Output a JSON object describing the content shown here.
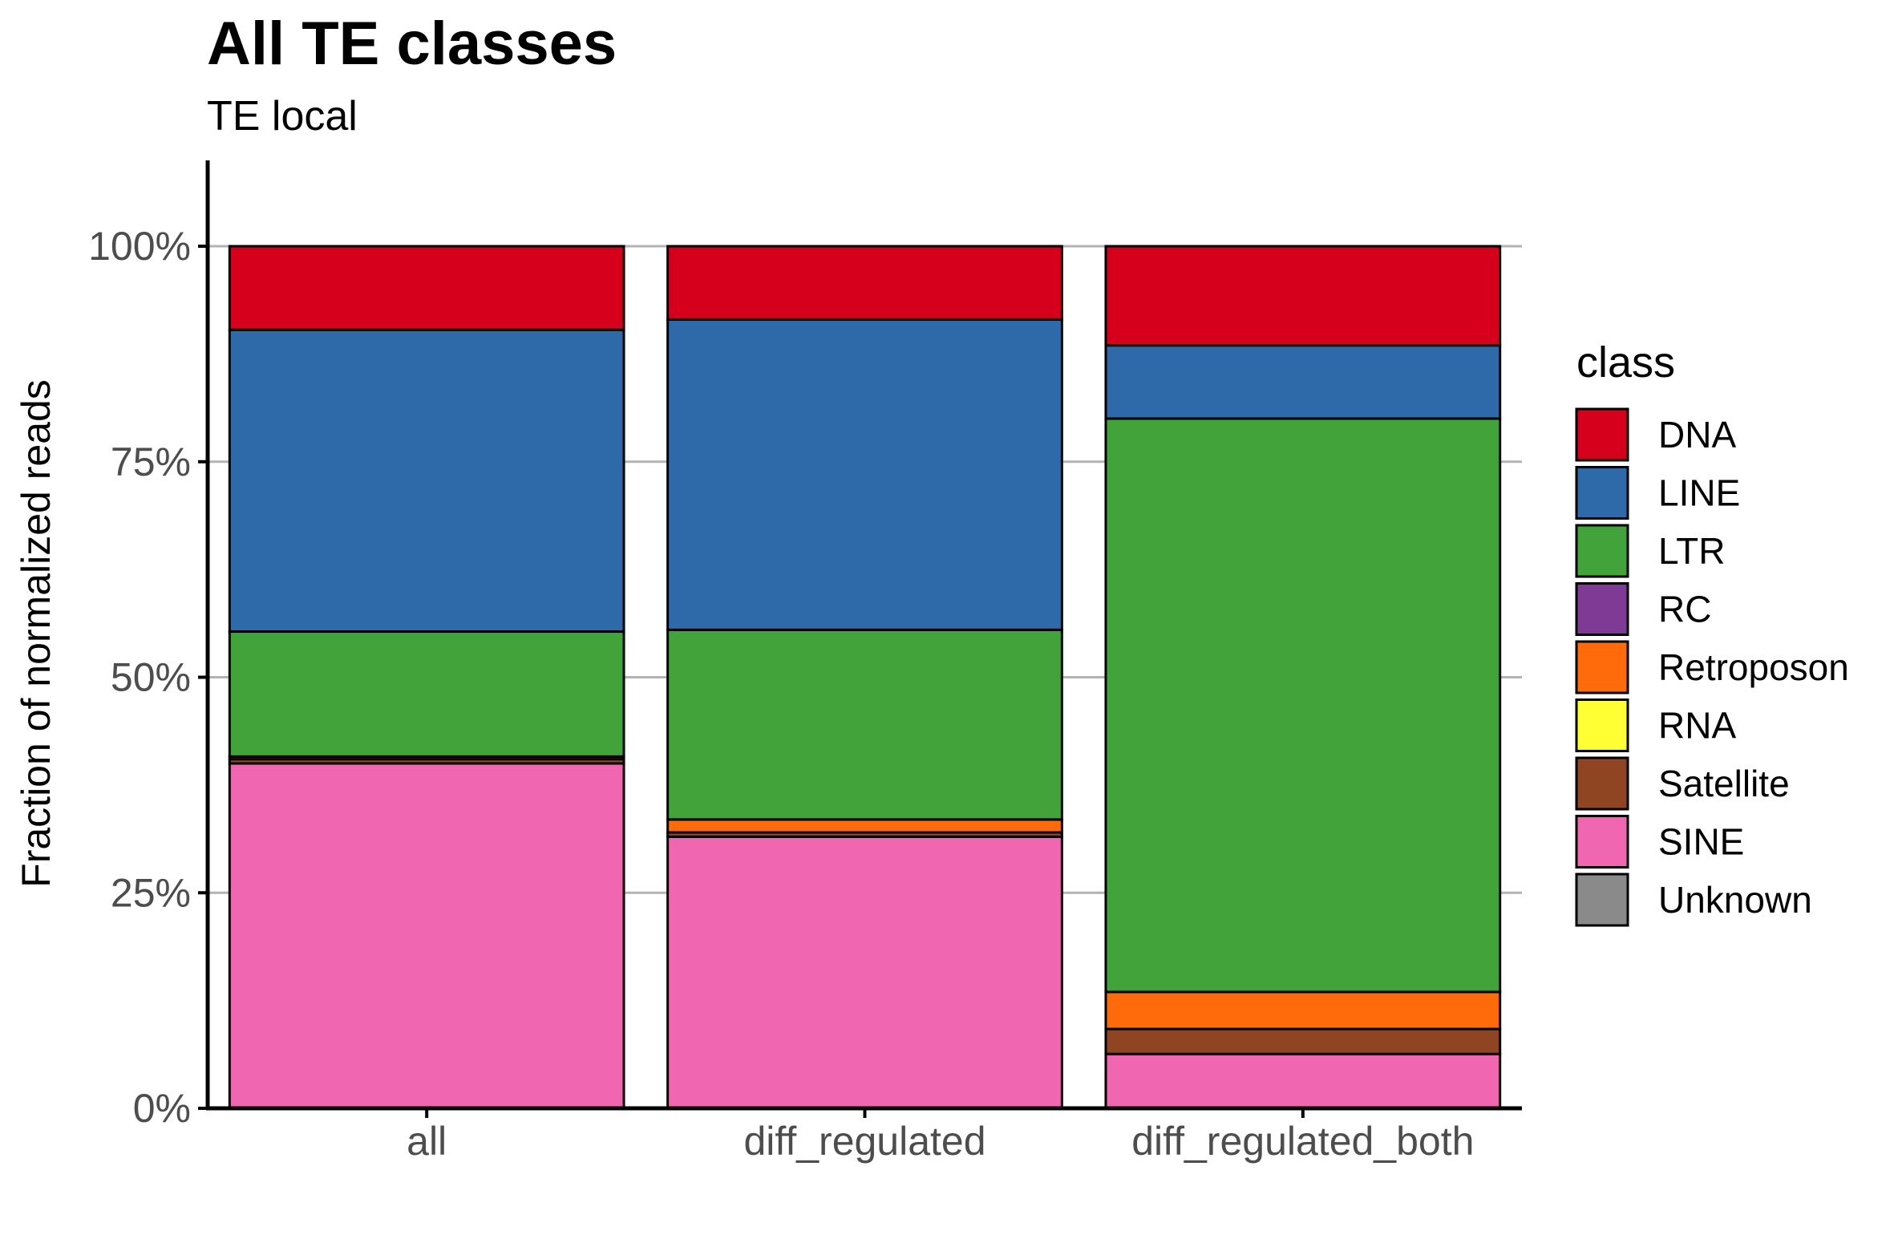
{
  "chart_data": {
    "type": "bar",
    "stacked": true,
    "normalized": true,
    "title": "All TE classes",
    "subtitle": "TE local",
    "xlabel": "",
    "ylabel": "Fraction of normalized reads",
    "ylim": [
      0,
      1
    ],
    "yticks": [
      0,
      0.25,
      0.5,
      0.75,
      1
    ],
    "ytick_labels": [
      "0%",
      "25%",
      "50%",
      "75%",
      "100%"
    ],
    "grid": "horizontal major",
    "legend": {
      "title": "class",
      "position": "right"
    },
    "categories": [
      "all",
      "diff_regulated",
      "diff_regulated_both"
    ],
    "series": [
      {
        "name": "DNA",
        "color": "#D7001C",
        "values": [
          0.097,
          0.085,
          0.115
        ]
      },
      {
        "name": "LINE",
        "color": "#2E69A9",
        "values": [
          0.35,
          0.36,
          0.085
        ]
      },
      {
        "name": "LTR",
        "color": "#42A33A",
        "values": [
          0.145,
          0.22,
          0.665
        ]
      },
      {
        "name": "RC",
        "color": "#7F3A96",
        "values": [
          0.0,
          0.0,
          0.0
        ]
      },
      {
        "name": "Retroposon",
        "color": "#FF6A0A",
        "values": [
          0.003,
          0.015,
          0.043
        ]
      },
      {
        "name": "RNA",
        "color": "#FFFF33",
        "values": [
          0.0,
          0.0,
          0.0
        ]
      },
      {
        "name": "Satellite",
        "color": "#8F4522",
        "values": [
          0.005,
          0.005,
          0.029
        ]
      },
      {
        "name": "SINE",
        "color": "#F066B0",
        "values": [
          0.4,
          0.315,
          0.063
        ]
      },
      {
        "name": "Unknown",
        "color": "#8A8A8A",
        "values": [
          0.0,
          0.0,
          0.0
        ]
      }
    ]
  }
}
